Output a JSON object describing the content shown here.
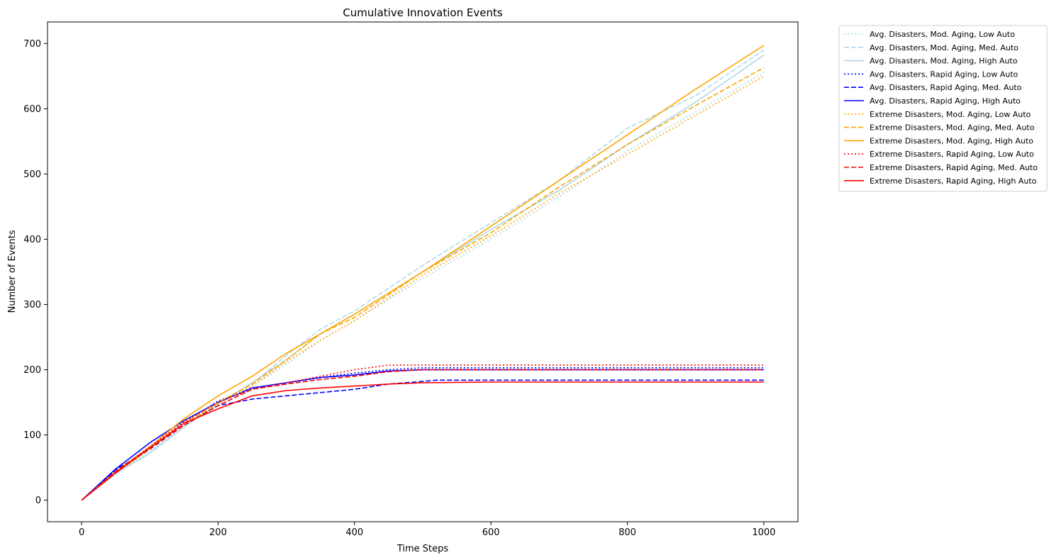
{
  "chart_data": {
    "type": "line",
    "title": "Cumulative Innovation Events",
    "xlabel": "Time Steps",
    "ylabel": "Number of Events",
    "xlim": [
      -50,
      1050
    ],
    "ylim": [
      -33,
      733
    ],
    "xticks": [
      0,
      200,
      400,
      600,
      800,
      1000
    ],
    "yticks": [
      0,
      100,
      200,
      300,
      400,
      500,
      600,
      700
    ],
    "grid": false,
    "legend_position": "outside upper right",
    "series": [
      {
        "name": "Avg. Disasters, Mod. Aging, Low Auto",
        "color": "#add8e6",
        "dash": "dotted",
        "x": [
          0,
          50,
          100,
          150,
          200,
          250,
          300,
          350,
          400,
          500,
          600,
          700,
          800,
          900,
          1000
        ],
        "y": [
          0,
          40,
          75,
          112,
          148,
          175,
          208,
          245,
          275,
          340,
          400,
          465,
          535,
          595,
          655
        ]
      },
      {
        "name": "Avg. Disasters, Mod. Aging, Med. Auto",
        "color": "#add8e6",
        "dash": "dashed",
        "x": [
          0,
          50,
          100,
          150,
          200,
          250,
          300,
          350,
          400,
          500,
          600,
          700,
          800,
          900,
          1000
        ],
        "y": [
          0,
          42,
          78,
          115,
          150,
          178,
          222,
          262,
          290,
          360,
          425,
          490,
          570,
          620,
          690
        ]
      },
      {
        "name": "Avg. Disasters, Mod. Aging, High Auto",
        "color": "#add8e6",
        "dash": "solid",
        "x": [
          0,
          50,
          100,
          150,
          200,
          250,
          300,
          350,
          400,
          500,
          600,
          700,
          800,
          900,
          1000
        ],
        "y": [
          0,
          41,
          72,
          112,
          148,
          180,
          215,
          255,
          285,
          350,
          415,
          475,
          545,
          610,
          682
        ]
      },
      {
        "name": "Avg. Disasters, Rapid Aging, Low Auto",
        "color": "#0000ff",
        "dash": "dotted",
        "x": [
          0,
          50,
          100,
          150,
          200,
          250,
          300,
          350,
          400,
          450,
          500,
          600,
          700,
          800,
          900,
          1000
        ],
        "y": [
          0,
          45,
          82,
          118,
          152,
          172,
          180,
          188,
          195,
          200,
          203,
          203,
          203,
          203,
          203,
          203
        ]
      },
      {
        "name": "Avg. Disasters, Rapid Aging, Med. Auto",
        "color": "#0000ff",
        "dash": "dashed",
        "x": [
          0,
          50,
          100,
          150,
          200,
          250,
          300,
          350,
          400,
          450,
          500,
          520,
          600,
          700,
          800,
          900,
          1000
        ],
        "y": [
          0,
          47,
          78,
          115,
          145,
          155,
          160,
          165,
          170,
          178,
          182,
          184,
          184,
          184,
          184,
          184,
          184
        ]
      },
      {
        "name": "Avg. Disasters, Rapid Aging, High Auto",
        "color": "#0000ff",
        "dash": "solid",
        "x": [
          0,
          50,
          100,
          150,
          200,
          250,
          300,
          350,
          400,
          450,
          500,
          600,
          700,
          800,
          900,
          1000
        ],
        "y": [
          0,
          48,
          88,
          122,
          150,
          172,
          180,
          188,
          192,
          198,
          200,
          200,
          200,
          200,
          200,
          200
        ]
      },
      {
        "name": "Extreme Disasters, Mod. Aging, Low Auto",
        "color": "#ffa500",
        "dash": "dotted",
        "x": [
          0,
          50,
          100,
          150,
          200,
          250,
          300,
          350,
          400,
          500,
          600,
          700,
          800,
          900,
          1000
        ],
        "y": [
          0,
          42,
          78,
          115,
          148,
          175,
          212,
          245,
          275,
          345,
          405,
          470,
          530,
          590,
          650
        ]
      },
      {
        "name": "Extreme Disasters, Mod. Aging, Med. Auto",
        "color": "#ffa500",
        "dash": "dashed",
        "x": [
          0,
          50,
          100,
          150,
          200,
          250,
          300,
          350,
          400,
          500,
          600,
          700,
          800,
          900,
          1000
        ],
        "y": [
          0,
          42,
          80,
          118,
          150,
          178,
          215,
          255,
          280,
          350,
          410,
          480,
          545,
          605,
          663
        ]
      },
      {
        "name": "Extreme Disasters, Mod. Aging, High Auto",
        "color": "#ffa500",
        "dash": "solid",
        "x": [
          0,
          50,
          100,
          150,
          200,
          250,
          300,
          350,
          400,
          500,
          600,
          700,
          800,
          900,
          1000
        ],
        "y": [
          0,
          44,
          82,
          125,
          160,
          190,
          225,
          255,
          285,
          350,
          420,
          490,
          560,
          630,
          697
        ]
      },
      {
        "name": "Extreme Disasters, Rapid Aging, Low Auto",
        "color": "#ff0000",
        "dash": "dotted",
        "x": [
          0,
          50,
          100,
          150,
          200,
          250,
          300,
          350,
          400,
          450,
          500,
          600,
          700,
          800,
          900,
          1000
        ],
        "y": [
          0,
          43,
          82,
          120,
          150,
          170,
          180,
          190,
          200,
          207,
          207,
          207,
          207,
          207,
          207,
          207
        ]
      },
      {
        "name": "Extreme Disasters, Rapid Aging, Med. Auto",
        "color": "#ff0000",
        "dash": "dashed",
        "x": [
          0,
          50,
          100,
          150,
          200,
          250,
          300,
          350,
          400,
          450,
          500,
          600,
          700,
          800,
          900,
          1000
        ],
        "y": [
          0,
          44,
          80,
          115,
          145,
          170,
          178,
          185,
          190,
          197,
          200,
          200,
          200,
          200,
          200,
          200
        ]
      },
      {
        "name": "Extreme Disasters, Rapid Aging, High Auto",
        "color": "#ff0000",
        "dash": "solid",
        "x": [
          0,
          50,
          100,
          150,
          200,
          250,
          300,
          350,
          400,
          450,
          500,
          600,
          700,
          800,
          900,
          1000
        ],
        "y": [
          0,
          42,
          80,
          118,
          140,
          160,
          168,
          172,
          175,
          178,
          180,
          181,
          181,
          181,
          181,
          181
        ]
      }
    ]
  }
}
